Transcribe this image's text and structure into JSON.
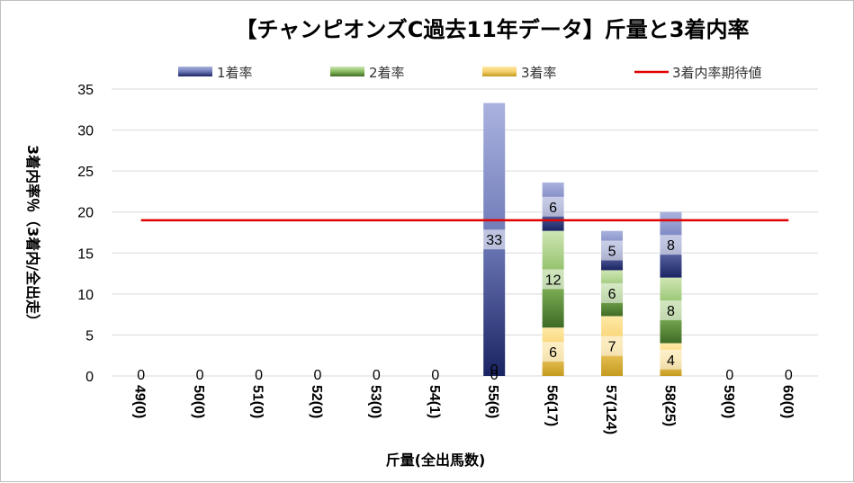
{
  "chart_data": {
    "type": "bar",
    "stacked": true,
    "title": "【チャンピオンズC過去11年データ】斤量と3着内率",
    "xlabel": "斤量(全出馬数)",
    "ylabel": "3着内率％（3着内/全出走）",
    "ylim": [
      0,
      35
    ],
    "yticks": [
      "0",
      "5",
      "10",
      "15",
      "20",
      "25",
      "30",
      "35"
    ],
    "grid": true,
    "legend_position": "top",
    "categories": [
      "49(0)",
      "50(0)",
      "51(0)",
      "52(0)",
      "53(0)",
      "54(1)",
      "55(6)",
      "56(17)",
      "57(124)",
      "58(25)",
      "59(0)",
      "60(0)"
    ],
    "series": [
      {
        "name": "3着率",
        "color": "#f5cf6a",
        "values": [
          0,
          0,
          0,
          0,
          0,
          0,
          0,
          5.9,
          7.3,
          4.0,
          0,
          0
        ],
        "labels": [
          "0",
          "0",
          "0",
          "0",
          "0",
          "0",
          "0",
          "6",
          "7",
          "4",
          "0",
          "0"
        ]
      },
      {
        "name": "2着率",
        "color": "#7aab52",
        "values": [
          0,
          0,
          0,
          0,
          0,
          0,
          0,
          11.8,
          5.6,
          8.0,
          0,
          0
        ],
        "labels": [
          "",
          "",
          "",
          "",
          "",
          "",
          "",
          "12",
          "6",
          "8",
          "",
          ""
        ]
      },
      {
        "name": "1着率",
        "color": "#6e79b8",
        "values": [
          0,
          0,
          0,
          0,
          0,
          0,
          33.3,
          5.9,
          4.8,
          8.0,
          0,
          0
        ],
        "labels": [
          "",
          "",
          "",
          "",
          "",
          "",
          "33",
          "6",
          "5",
          "8",
          "",
          ""
        ]
      }
    ],
    "reference_line": {
      "name": "3着内率期待値",
      "color": "#e00000",
      "value": 19
    }
  },
  "legend": [
    {
      "label": "1着率",
      "color": "#6e79b8"
    },
    {
      "label": "2着率",
      "color": "#7aab52"
    },
    {
      "label": "3着率",
      "color": "#f5cf6a"
    },
    {
      "label": "3着内率期待値",
      "color": "#e00000"
    }
  ]
}
